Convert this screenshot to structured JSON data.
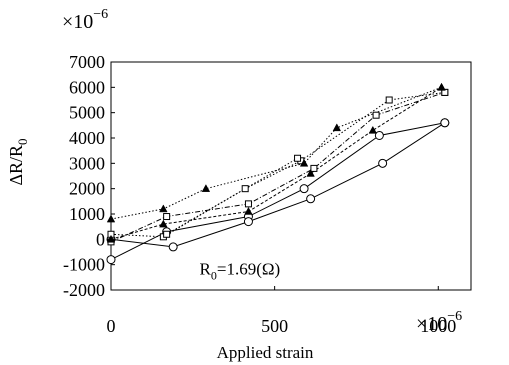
{
  "chart_data": {
    "type": "line",
    "xlabel": "Applied strain",
    "ylabel": "ΔR/R",
    "ylabel_sub": "0",
    "x_multiplier": "×10",
    "x_multiplier_exp": "−6",
    "y_multiplier": "×10",
    "y_multiplier_exp": "−6",
    "xlim": [
      0,
      1100
    ],
    "ylim": [
      -2000,
      7000
    ],
    "x_ticks": [
      0,
      500,
      1000
    ],
    "y_ticks": [
      -2000,
      -1000,
      0,
      1000,
      2000,
      3000,
      4000,
      5000,
      6000,
      7000
    ],
    "x_tick_labels": [
      "0",
      "500",
      "1000"
    ],
    "y_tick_labels": [
      "-2000",
      "-1000",
      "0",
      "1000",
      "2000",
      "3000",
      "4000",
      "5000",
      "6000",
      "7000"
    ],
    "grid": false,
    "annotation": {
      "prefix": "R",
      "sub": "0",
      "suffix": "=1.69(Ω)",
      "x": 460,
      "y": 300
    },
    "series": [
      {
        "marker": "circle",
        "line": "solid",
        "x": [
          0,
          170,
          420,
          590,
          820,
          1020
        ],
        "y": [
          -800,
          300,
          900,
          2000,
          4100,
          4600
        ]
      },
      {
        "marker": "circle",
        "line": "solid",
        "x": [
          0,
          190,
          420,
          610,
          830,
          1020
        ],
        "y": [
          0,
          -300,
          700,
          1600,
          3000,
          4600
        ]
      },
      {
        "marker": "square",
        "line": "dashdot",
        "x": [
          0,
          170,
          420,
          620,
          810,
          1020
        ],
        "y": [
          -100,
          900,
          1400,
          2800,
          4900,
          5800
        ]
      },
      {
        "marker": "square",
        "line": "dotted",
        "x": [
          0,
          160,
          410,
          580,
          850,
          1020
        ],
        "y": [
          200,
          100,
          2000,
          3100,
          5500,
          5800
        ]
      },
      {
        "marker": "square",
        "line": "dotted",
        "x": [
          170,
          570
        ],
        "y": [
          200,
          3200
        ]
      },
      {
        "marker": "triangle",
        "line": "dashed",
        "x": [
          0,
          160,
          420,
          610,
          800,
          1010
        ],
        "y": [
          0,
          600,
          1100,
          2600,
          4300,
          6000
        ]
      },
      {
        "marker": "triangle",
        "line": "dotted",
        "x": [
          0,
          160,
          290,
          590,
          690,
          1010
        ],
        "y": [
          800,
          1200,
          2000,
          3000,
          4400,
          6000
        ]
      }
    ]
  }
}
